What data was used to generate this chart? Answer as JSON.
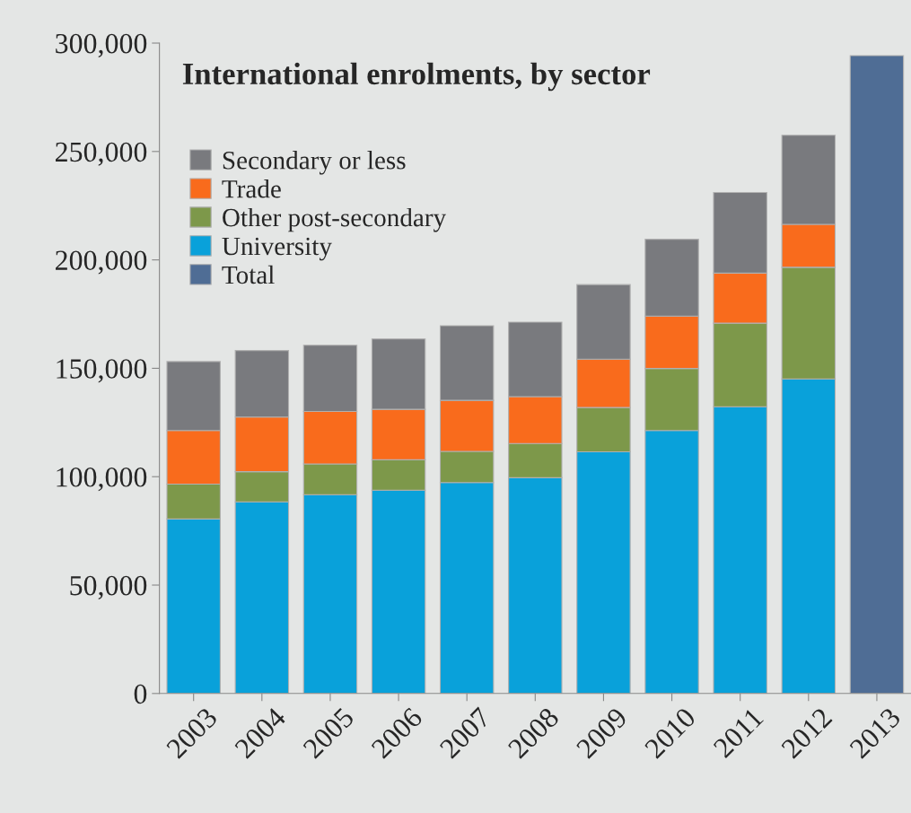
{
  "chart_data": {
    "type": "bar",
    "title": "International enrolments, by sector",
    "stacked": true,
    "legend": "top left",
    "grid": false,
    "categories": [
      "2003",
      "2004",
      "2005",
      "2006",
      "2007",
      "2008",
      "2009",
      "2010",
      "2011",
      "2012",
      "2013"
    ],
    "ylim": [
      0,
      300000
    ],
    "yticks": [
      {
        "value": 0,
        "label": "0"
      },
      {
        "value": 50000,
        "label": "50,000"
      },
      {
        "value": 100000,
        "label": "100,000"
      },
      {
        "value": 150000,
        "label": "150,000"
      },
      {
        "value": 200000,
        "label": "200,000"
      },
      {
        "value": 250000,
        "label": "250,000"
      },
      {
        "value": 300000,
        "label": "300,000"
      }
    ],
    "series": [
      {
        "name": "Total",
        "color": "#4f6d95",
        "values": [
          null,
          null,
          null,
          null,
          null,
          null,
          null,
          null,
          null,
          null,
          294200
        ]
      },
      {
        "name": "University",
        "color": "#09a1da",
        "values": [
          80500,
          88400,
          91700,
          93800,
          97300,
          99500,
          111500,
          121300,
          132300,
          145100,
          null
        ]
      },
      {
        "name": "Other post-secondary",
        "color": "#7d984a",
        "values": [
          16100,
          13900,
          14200,
          14000,
          14400,
          15800,
          20400,
          28600,
          38500,
          51500,
          null
        ]
      },
      {
        "name": "Trade",
        "color": "#f96b1c",
        "values": [
          24700,
          25200,
          24200,
          23300,
          23500,
          21600,
          22300,
          24200,
          23100,
          19800,
          null
        ]
      },
      {
        "name": "Secondary or less",
        "color": "#797a7e",
        "values": [
          31800,
          30700,
          30500,
          32400,
          34400,
          34400,
          34400,
          35400,
          37200,
          41100,
          null
        ]
      }
    ]
  }
}
